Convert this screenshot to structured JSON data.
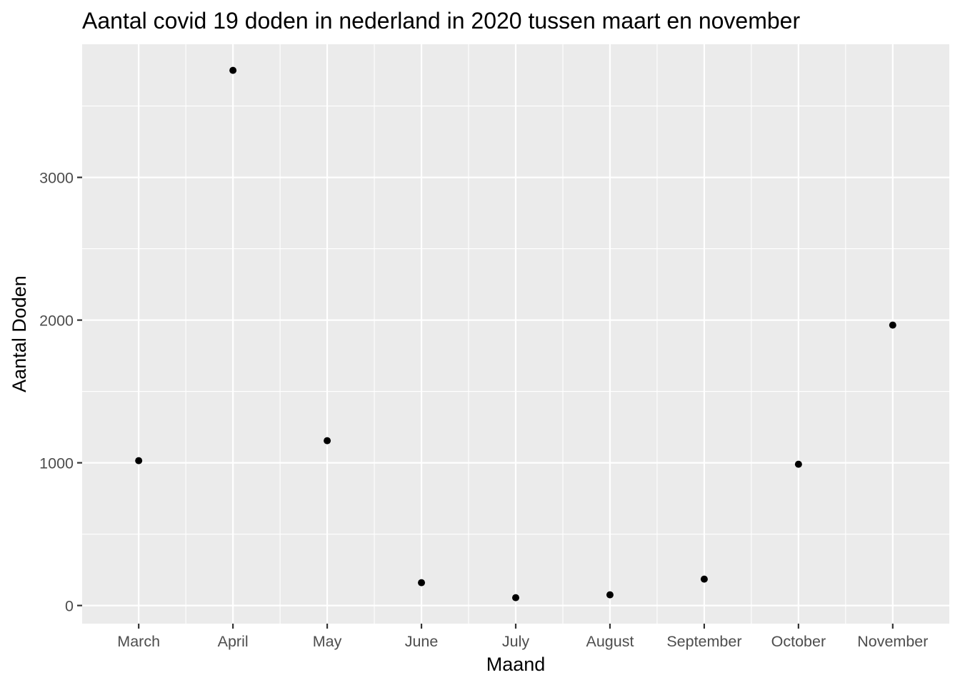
{
  "chart_data": {
    "type": "scatter",
    "title": "Aantal covid 19 doden in nederland in 2020 tussen maart en november",
    "xlabel": "Maand",
    "ylabel": "Aantal Doden",
    "categories": [
      "March",
      "April",
      "May",
      "June",
      "July",
      "August",
      "September",
      "October",
      "November"
    ],
    "values": [
      1015,
      3750,
      1155,
      160,
      55,
      75,
      185,
      990,
      1965
    ],
    "y_ticks": [
      "0",
      "1000",
      "2000",
      "3000"
    ],
    "ylim": [
      -127,
      3933
    ],
    "grid": true,
    "legend": "none",
    "colors": {
      "panel_background": "#ebebeb",
      "grid": "#ffffff",
      "point": "#000000",
      "tick_text": "#4d4d4d",
      "tick_mark": "#333333"
    }
  }
}
